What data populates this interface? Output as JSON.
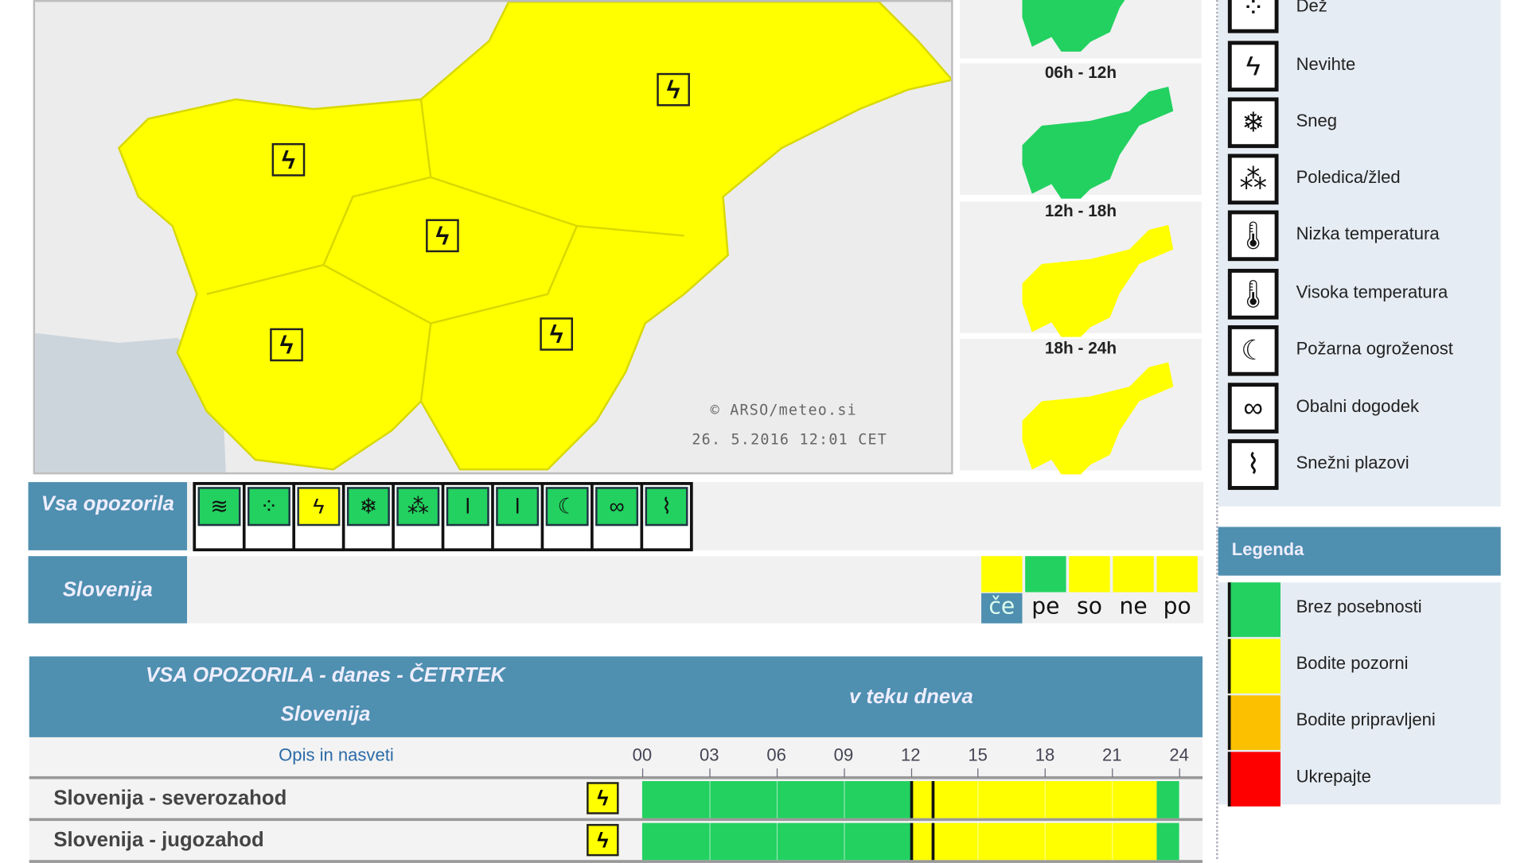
{
  "colors": {
    "green": "#22d160",
    "yellow": "#ffff00",
    "orange": "#fcc000",
    "red": "#ff0000",
    "header": "#4f8fb0"
  },
  "main_map": {
    "copyright": "© ARSO/meteo.si",
    "timestamp": "26. 5.2016  12:01 CET",
    "region_level": "yellow",
    "region_icon": "thunderstorm-icon"
  },
  "small_maps": [
    {
      "label": "",
      "level": "green"
    },
    {
      "label": "06h - 12h",
      "level": "green"
    },
    {
      "label": "12h - 18h",
      "level": "yellow"
    },
    {
      "label": "18h - 24h",
      "level": "yellow"
    }
  ],
  "warning_types": [
    {
      "label": "Dež",
      "icon": "rain-icon",
      "glyph": "⁘"
    },
    {
      "label": "Nevihte",
      "icon": "thunderstorm-icon",
      "glyph": "ϟ"
    },
    {
      "label": "Sneg",
      "icon": "snow-icon",
      "glyph": "❄"
    },
    {
      "label": "Poledica/žled",
      "icon": "ice-icon",
      "glyph": "⁂"
    },
    {
      "label": "Nizka temperatura",
      "icon": "low-temperature-icon",
      "glyph": "🌡"
    },
    {
      "label": "Visoka temperatura",
      "icon": "high-temperature-icon",
      "glyph": "🌡"
    },
    {
      "label": "Požarna ogroženost",
      "icon": "fire-danger-icon",
      "glyph": "☾"
    },
    {
      "label": "Obalni dogodek",
      "icon": "coastal-event-icon",
      "glyph": "∞"
    },
    {
      "label": "Snežni plazovi",
      "icon": "avalanche-icon",
      "glyph": "⌇"
    }
  ],
  "vsa": {
    "label": "Vsa opozorila",
    "icons": [
      {
        "icon": "wind-icon",
        "glyph": "≋",
        "level": "green"
      },
      {
        "icon": "rain-icon",
        "glyph": "⁘",
        "level": "green"
      },
      {
        "icon": "thunderstorm-icon",
        "glyph": "ϟ",
        "level": "yellow"
      },
      {
        "icon": "snow-icon",
        "glyph": "❄",
        "level": "green"
      },
      {
        "icon": "ice-icon",
        "glyph": "⁂",
        "level": "green"
      },
      {
        "icon": "low-temperature-icon",
        "glyph": "ǀ",
        "level": "green"
      },
      {
        "icon": "high-temperature-icon",
        "glyph": "ǀ",
        "level": "green"
      },
      {
        "icon": "fire-danger-icon",
        "glyph": "☾",
        "level": "green"
      },
      {
        "icon": "coastal-event-icon",
        "glyph": "∞",
        "level": "green"
      },
      {
        "icon": "avalanche-icon",
        "glyph": "⌇",
        "level": "green"
      }
    ]
  },
  "slovenija": {
    "label": "Slovenija",
    "days": [
      {
        "label": "če",
        "level": "yellow",
        "selected": true
      },
      {
        "label": "pe",
        "level": "green",
        "selected": false
      },
      {
        "label": "so",
        "level": "yellow",
        "selected": false
      },
      {
        "label": "ne",
        "level": "yellow",
        "selected": false
      },
      {
        "label": "po",
        "level": "yellow",
        "selected": false
      }
    ]
  },
  "table": {
    "title": "VSA OPOZORILA - danes - ČETRTEK",
    "subtitle": "Slovenija",
    "period": "v teku dneva",
    "desc_header": "Opis in nasveti",
    "hours": [
      "00",
      "03",
      "06",
      "09",
      "12",
      "15",
      "18",
      "21",
      "24"
    ],
    "rows": [
      {
        "name": "Slovenija - severozahod",
        "icon": "thunderstorm-icon",
        "glyph": "ϟ",
        "segments": [
          {
            "from": 0,
            "to": 12,
            "level": "green"
          },
          {
            "from": 12,
            "to": 23,
            "level": "yellow"
          },
          {
            "from": 23,
            "to": 24,
            "level": "green"
          }
        ],
        "markers": [
          12,
          13
        ]
      },
      {
        "name": "Slovenija - jugozahod",
        "icon": "thunderstorm-icon",
        "glyph": "ϟ",
        "segments": [
          {
            "from": 0,
            "to": 12,
            "level": "green"
          },
          {
            "from": 12,
            "to": 23,
            "level": "yellow"
          },
          {
            "from": 23,
            "to": 24,
            "level": "green"
          }
        ],
        "markers": [
          12,
          13
        ]
      }
    ]
  },
  "legend": {
    "title": "Legenda",
    "items": [
      {
        "label": "Brez posebnosti",
        "level": "green"
      },
      {
        "label": "Bodite pozorni",
        "level": "yellow"
      },
      {
        "label": "Bodite pripravljeni",
        "level": "orange"
      },
      {
        "label": "Ukrepajte",
        "level": "red"
      }
    ]
  }
}
